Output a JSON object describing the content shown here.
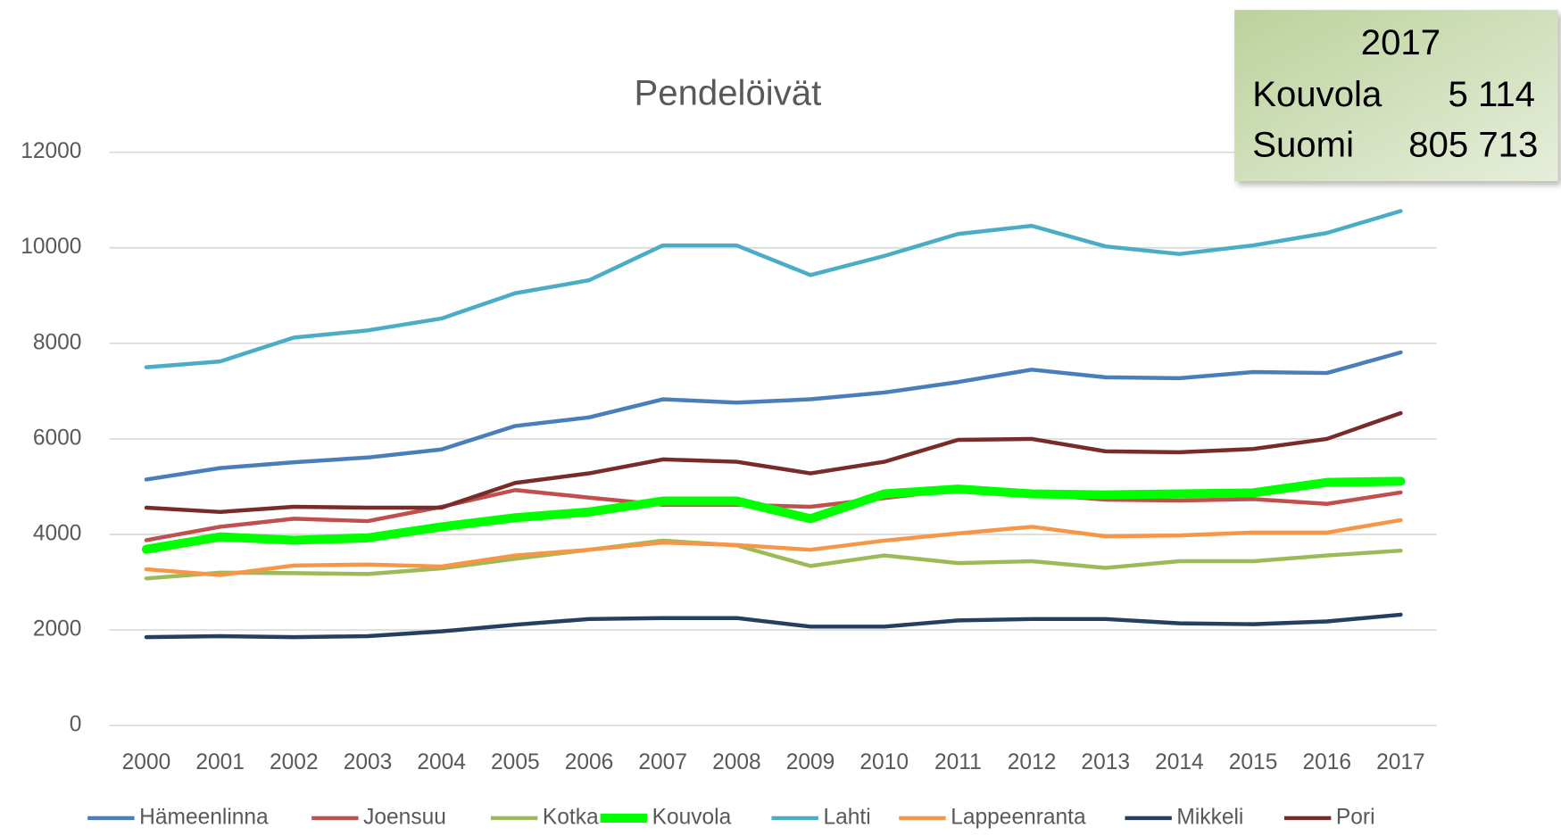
{
  "chart_data": {
    "type": "line",
    "title": "Pendelöivät",
    "categories": [
      "2000",
      "2001",
      "2002",
      "2003",
      "2004",
      "2005",
      "2006",
      "2007",
      "2008",
      "2009",
      "2010",
      "2011",
      "2012",
      "2013",
      "2014",
      "2015",
      "2016",
      "2017"
    ],
    "ylim": [
      0,
      12000
    ],
    "yticks": [
      0,
      2000,
      4000,
      6000,
      8000,
      10000,
      12000
    ],
    "grid": true,
    "legend": "bottom",
    "series": [
      {
        "name": "Hämeenlinna",
        "color": "#4a7ebb",
        "linewidth": 4,
        "values": [
          5150,
          5390,
          5510,
          5610,
          5780,
          6270,
          6450,
          6830,
          6760,
          6830,
          6970,
          7190,
          7450,
          7290,
          7270,
          7400,
          7380,
          7810
        ]
      },
      {
        "name": "Joensuu",
        "color": "#c0504d",
        "linewidth": 4,
        "values": [
          3880,
          4160,
          4330,
          4280,
          4580,
          4930,
          4770,
          4620,
          4620,
          4580,
          4760,
          4940,
          4850,
          4730,
          4710,
          4740,
          4640,
          4880
        ]
      },
      {
        "name": "Kotka",
        "color": "#9bbb59",
        "linewidth": 4,
        "values": [
          3080,
          3200,
          3190,
          3170,
          3290,
          3490,
          3680,
          3870,
          3770,
          3340,
          3560,
          3400,
          3440,
          3300,
          3440,
          3440,
          3560,
          3660
        ]
      },
      {
        "name": "Kouvola",
        "color": "#00ff00",
        "linewidth": 9,
        "values": [
          3690,
          3950,
          3880,
          3930,
          4160,
          4350,
          4470,
          4700,
          4700,
          4330,
          4850,
          4950,
          4850,
          4830,
          4850,
          4870,
          5090,
          5114
        ]
      },
      {
        "name": "Lahti",
        "color": "#4bacc6",
        "linewidth": 4,
        "values": [
          7500,
          7620,
          8120,
          8270,
          8520,
          9050,
          9320,
          10050,
          10050,
          9430,
          9830,
          10290,
          10460,
          10030,
          9870,
          10050,
          10310,
          10770
        ]
      },
      {
        "name": "Lappeenranta",
        "color": "#f79646",
        "linewidth": 4,
        "values": [
          3270,
          3150,
          3350,
          3370,
          3330,
          3560,
          3680,
          3830,
          3780,
          3680,
          3870,
          4020,
          4160,
          3960,
          3980,
          4040,
          4040,
          4300
        ]
      },
      {
        "name": "Mikkeli",
        "color": "#243f60",
        "linewidth": 4,
        "values": [
          1850,
          1870,
          1850,
          1870,
          1970,
          2110,
          2230,
          2250,
          2250,
          2070,
          2070,
          2200,
          2230,
          2230,
          2140,
          2120,
          2180,
          2320
        ]
      },
      {
        "name": "Pori",
        "color": "#772c2a",
        "linewidth": 4,
        "values": [
          4560,
          4470,
          4580,
          4560,
          4560,
          5080,
          5280,
          5570,
          5520,
          5280,
          5520,
          5980,
          6000,
          5740,
          5720,
          5790,
          6000,
          6540
        ]
      }
    ]
  },
  "info_box": {
    "year": "2017",
    "rows": [
      [
        "Kouvola",
        "5 114"
      ],
      [
        "Suomi",
        "805 713"
      ]
    ]
  }
}
